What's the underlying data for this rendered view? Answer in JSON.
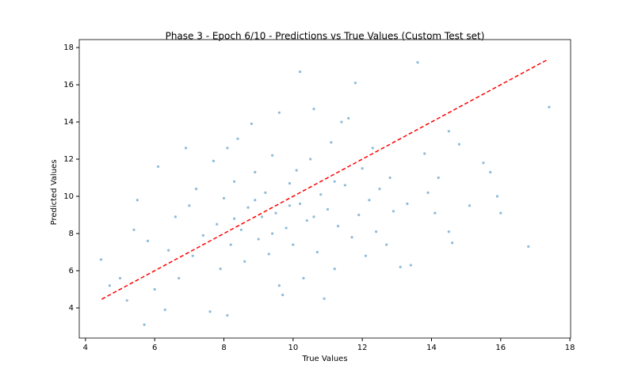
{
  "chart_data": {
    "type": "scatter",
    "title": "Phase 3 - Epoch 6/10 - Predictions vs True Values (Custom Test set)",
    "x_label": "True Values",
    "y_label": "Predicted Values",
    "xlim": [
      3.82,
      18.02
    ],
    "ylim": [
      2.38,
      18.43
    ],
    "xticks": [
      4,
      6,
      8,
      10,
      12,
      14,
      16,
      18
    ],
    "yticks": [
      4,
      6,
      8,
      10,
      12,
      14,
      16,
      18
    ],
    "color": "#1f77b4",
    "x": [
      4.45,
      4.7,
      5.0,
      5.2,
      5.4,
      5.5,
      5.7,
      5.8,
      6.0,
      6.1,
      6.3,
      6.4,
      6.6,
      6.7,
      6.9,
      7.0,
      7.1,
      7.2,
      7.4,
      7.6,
      7.7,
      7.8,
      7.9,
      8.0,
      8.1,
      8.1,
      8.2,
      8.3,
      8.4,
      8.5,
      8.6,
      8.7,
      8.8,
      8.9,
      9.0,
      9.1,
      9.2,
      9.3,
      9.4,
      9.5,
      9.6,
      9.6,
      9.7,
      9.8,
      9.9,
      10.0,
      10.1,
      10.2,
      10.2,
      10.3,
      10.4,
      10.5,
      10.6,
      10.7,
      10.8,
      10.9,
      11.0,
      11.1,
      11.2,
      11.3,
      11.4,
      11.5,
      11.6,
      11.7,
      11.8,
      11.9,
      12.0,
      12.1,
      12.2,
      12.3,
      12.4,
      12.5,
      12.7,
      12.8,
      12.9,
      13.1,
      13.3,
      13.4,
      13.6,
      13.8,
      13.9,
      14.1,
      14.2,
      14.5,
      14.5,
      14.6,
      14.8,
      15.1,
      15.5,
      15.7,
      15.9,
      16.0,
      16.8,
      17.4,
      9.4,
      8.9,
      10.6,
      9.9,
      8.3,
      11.2
    ],
    "y": [
      6.6,
      5.2,
      5.6,
      4.4,
      8.2,
      9.8,
      3.1,
      7.6,
      5.0,
      11.6,
      3.9,
      7.1,
      8.9,
      5.6,
      12.6,
      9.5,
      6.8,
      10.4,
      7.9,
      3.8,
      11.9,
      8.5,
      6.1,
      9.9,
      12.6,
      3.6,
      7.4,
      10.8,
      13.1,
      8.2,
      6.5,
      9.4,
      13.9,
      11.3,
      7.7,
      8.9,
      10.2,
      6.9,
      12.2,
      9.1,
      14.5,
      5.2,
      4.7,
      8.3,
      10.7,
      7.4,
      11.4,
      16.7,
      9.6,
      5.6,
      8.7,
      12.0,
      14.7,
      7.0,
      10.1,
      4.5,
      9.3,
      12.9,
      6.1,
      8.4,
      14.0,
      10.6,
      14.2,
      7.8,
      16.1,
      9.0,
      11.5,
      6.8,
      9.8,
      12.6,
      8.1,
      10.4,
      7.4,
      11.0,
      9.2,
      6.2,
      9.6,
      6.3,
      17.2,
      12.3,
      10.2,
      9.1,
      11.0,
      13.5,
      8.1,
      7.5,
      12.8,
      9.5,
      11.8,
      11.3,
      10.0,
      9.1,
      7.3,
      14.8,
      8.0,
      9.8,
      8.9,
      9.5,
      8.8,
      10.8
    ],
    "reference_line": {
      "x": [
        4.47,
        17.37
      ],
      "y": [
        4.47,
        17.37
      ],
      "color": "#ff0000"
    }
  }
}
